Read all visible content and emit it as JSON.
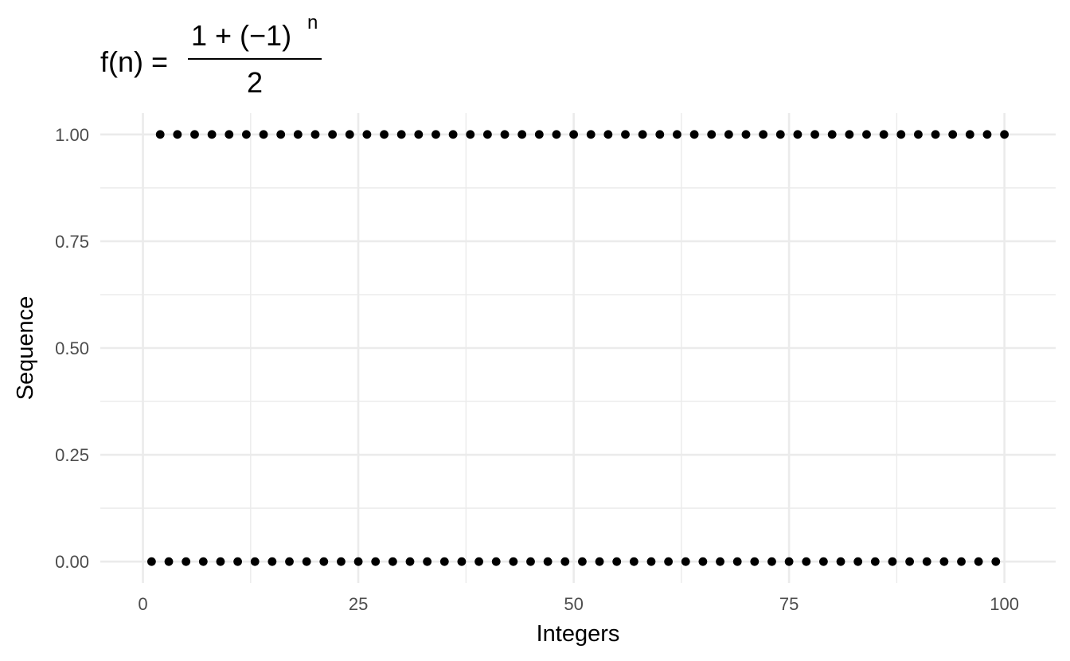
{
  "chart_data": {
    "type": "scatter",
    "title": {
      "lhs": "f(n) =",
      "numerator": "1 + (−1)",
      "exponent": "n",
      "denominator": "2"
    },
    "xlabel": "Integers",
    "ylabel": "Sequence",
    "xlim": [
      -4.95,
      105.95
    ],
    "ylim": [
      -0.05,
      1.05
    ],
    "x_ticks": [
      0,
      25,
      50,
      75,
      100
    ],
    "x_tick_labels": [
      "0",
      "25",
      "50",
      "75",
      "100"
    ],
    "y_ticks": [
      0,
      0.25,
      0.5,
      0.75,
      1
    ],
    "y_tick_labels": [
      "0.00",
      "0.25",
      "0.50",
      "0.75",
      "1.00"
    ],
    "grid": true,
    "point_color": "#000000",
    "grid_color": "#ebebeb",
    "series": [
      {
        "x_range": [
          1,
          100
        ],
        "formula": "(1 + (-1)^n) / 2"
      }
    ]
  }
}
